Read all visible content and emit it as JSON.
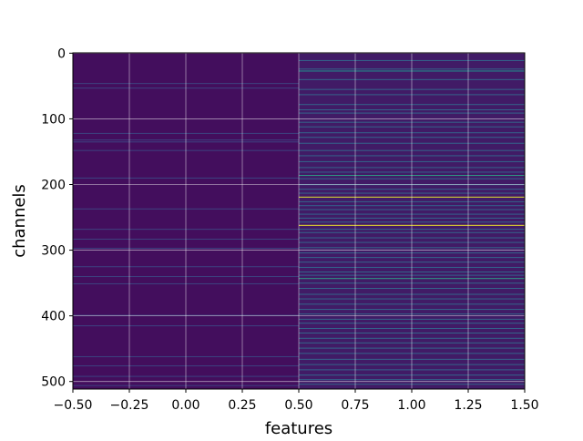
{
  "chart_data": {
    "type": "heatmap",
    "title": "",
    "xlabel": "features",
    "ylabel": "channels",
    "xlim": [
      -0.5,
      1.5
    ],
    "ylim": [
      511.5,
      -0.5
    ],
    "x_ticks": [
      -0.5,
      -0.25,
      0.0,
      0.25,
      0.5,
      0.75,
      1.0,
      1.25,
      1.5
    ],
    "x_tick_labels": [
      "−0.50",
      "−0.25",
      "0.00",
      "0.25",
      "0.50",
      "0.75",
      "1.00",
      "1.25",
      "1.50"
    ],
    "y_ticks": [
      0,
      100,
      200,
      300,
      400,
      500
    ],
    "y_tick_labels": [
      "0",
      "100",
      "200",
      "300",
      "400",
      "500"
    ],
    "grid": true,
    "colormap": "viridis",
    "n_rows": 512,
    "columns": [
      0,
      1
    ],
    "column_baseline_values": [
      0.04,
      0.08
    ],
    "highlights": [
      {
        "column": 0,
        "rows": [
          46,
          53,
          122,
          132,
          135,
          148,
          190,
          237,
          268,
          283,
          297,
          325,
          340,
          351,
          399,
          415,
          462,
          476,
          492,
          506
        ],
        "value": 0.2
      },
      {
        "column": 1,
        "rows": [
          27
        ],
        "value": 0.5
      },
      {
        "column": 1,
        "rows": [
          186,
          343
        ],
        "value": 0.55
      },
      {
        "column": 1,
        "rows": [
          219
        ],
        "value": 0.95
      },
      {
        "column": 1,
        "rows": [
          262
        ],
        "value": 0.97
      },
      {
        "column": 1,
        "rows": [
          11,
          24,
          40,
          55,
          63,
          78,
          86,
          91,
          105,
          112,
          121,
          128,
          137,
          148,
          156,
          165,
          174,
          181,
          191,
          200,
          207,
          213,
          226,
          232,
          238,
          245,
          251,
          257,
          268,
          273,
          281,
          288,
          296,
          304,
          311,
          318,
          326,
          333,
          338,
          350,
          358,
          367,
          374,
          382,
          390,
          397,
          405,
          411,
          419,
          426,
          434,
          441,
          449,
          457,
          466,
          474,
          482,
          490,
          497,
          504
        ],
        "value": 0.32
      }
    ]
  }
}
